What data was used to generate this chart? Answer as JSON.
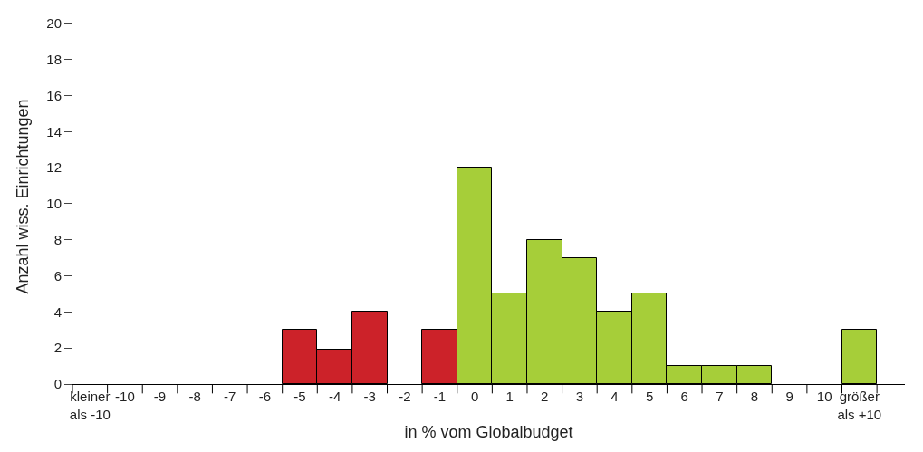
{
  "chart_data": {
    "type": "bar",
    "xlabel": "in % vom Globalbudget",
    "ylabel": "Anzahl wiss. Einrichtungen",
    "categories": [
      "kleiner\nals -10",
      "-10",
      "-9",
      "-8",
      "-7",
      "-6",
      "-5",
      "-4",
      "-3",
      "-2",
      "-1",
      "0",
      "1",
      "2",
      "3",
      "4",
      "5",
      "6",
      "7",
      "8",
      "9",
      "10",
      "größer\nals +10"
    ],
    "values": [
      null,
      null,
      null,
      null,
      null,
      null,
      3,
      1.9,
      4,
      null,
      3,
      12,
      5,
      8,
      7,
      4,
      5,
      1,
      1,
      1,
      null,
      null,
      3
    ],
    "colors": [
      "#cc2229",
      "#cc2229",
      "#cc2229",
      "#cc2229",
      "#cc2229",
      "#cc2229",
      "#cc2229",
      "#cc2229",
      "#cc2229",
      "#cc2229",
      "#cc2229",
      "#a6ce39",
      "#a6ce39",
      "#a6ce39",
      "#a6ce39",
      "#a6ce39",
      "#a6ce39",
      "#a6ce39",
      "#a6ce39",
      "#a6ce39",
      "#a6ce39",
      "#a6ce39",
      "#a6ce39"
    ],
    "ylim": [
      0,
      20.8
    ],
    "yticks": [
      0,
      2,
      4,
      6,
      8,
      10,
      12,
      14,
      16,
      18,
      20
    ]
  }
}
